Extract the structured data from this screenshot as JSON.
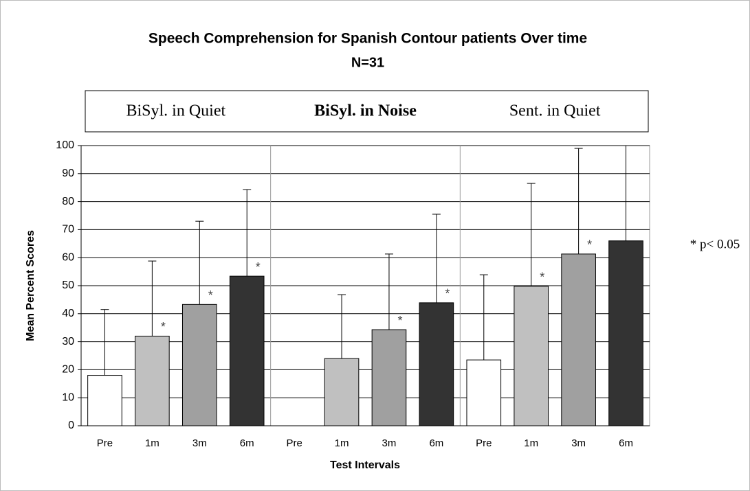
{
  "chart_data": {
    "type": "bar",
    "title": "Speech Comprehension for Spanish Contour patients Over time",
    "subtitle": "N=31",
    "groups": [
      "BiSyl. in Quiet",
      "BiSyl. in Noise",
      "Sent. in Quiet"
    ],
    "categories": [
      "Pre",
      "1m",
      "3m",
      "6m",
      "Pre",
      "1m",
      "3m",
      "6m",
      "Pre",
      "1m",
      "3m",
      "6m"
    ],
    "values": [
      18,
      32,
      43.3,
      53.4,
      null,
      24,
      34.3,
      43.9,
      23.5,
      49.8,
      61.3,
      66
    ],
    "errors": [
      23.5,
      26.8,
      29.7,
      30.9,
      null,
      22.8,
      27,
      31.6,
      30.4,
      36.7,
      37.7,
      36
    ],
    "colors": [
      "#ffffff",
      "#c0c0c0",
      "#a0a0a0",
      "#333333",
      "#ffffff",
      "#c0c0c0",
      "#a0a0a0",
      "#333333",
      "#ffffff",
      "#c0c0c0",
      "#a0a0a0",
      "#333333"
    ],
    "significance": [
      null,
      "*",
      "*",
      "*",
      null,
      null,
      "*",
      "*",
      null,
      "*",
      "*",
      null
    ],
    "annotation": "* p< 0.05",
    "xlabel": "Test Intervals",
    "ylabel": "Mean Percent Scores",
    "ylim": [
      0,
      100
    ],
    "yticks": [
      0,
      10,
      20,
      30,
      40,
      50,
      60,
      70,
      80,
      90,
      100
    ],
    "grid": true
  }
}
